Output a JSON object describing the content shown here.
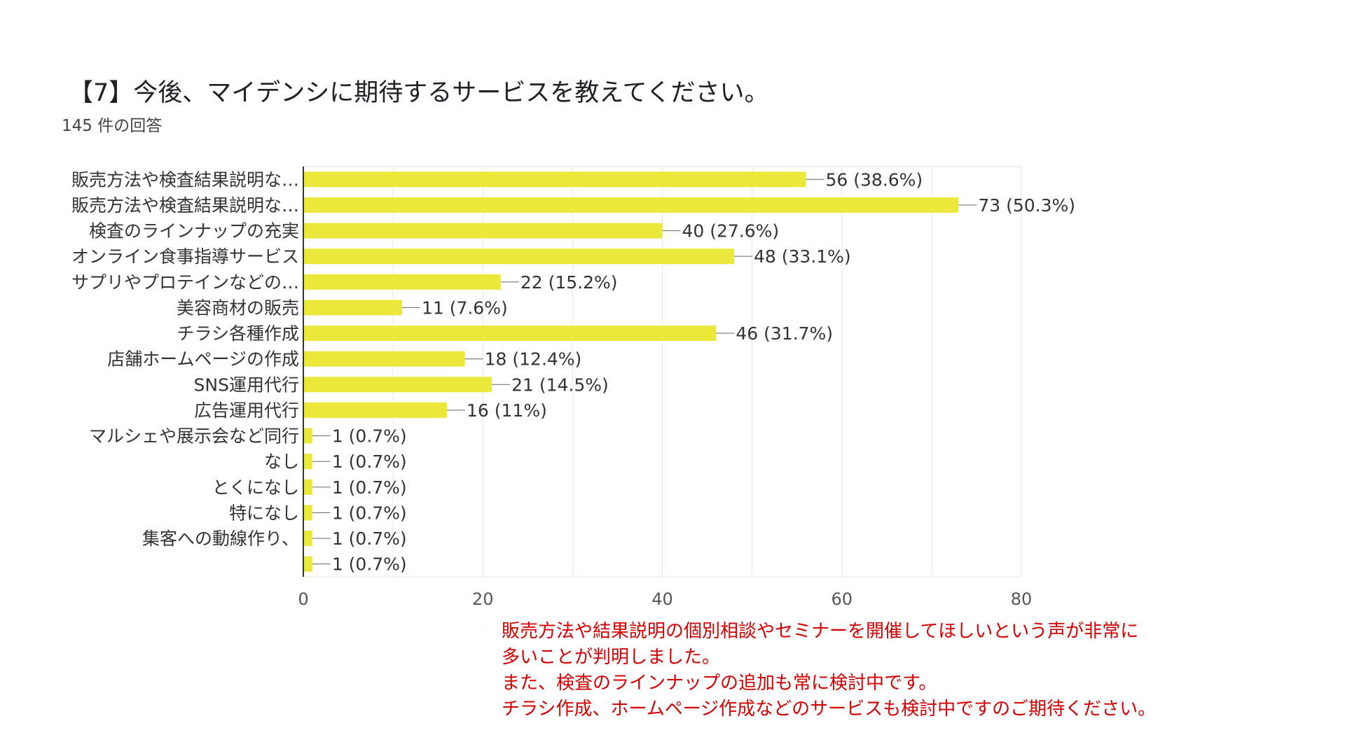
{
  "title": "【7】今後、マイデンシに期待するサービスを教えてください。",
  "subtitle": "145 件の回答",
  "colors": {
    "bar": "#ebe83c",
    "grid": "#e6e6e6",
    "axis": "#333333",
    "note": "#d50000"
  },
  "chart_data": {
    "type": "bar",
    "orientation": "horizontal",
    "title": "【7】今後、マイデンシに期待するサービスを教えてください。",
    "xlabel": "",
    "ylabel": "",
    "xlim": [
      0,
      80
    ],
    "xticks": [
      0,
      20,
      40,
      60,
      80
    ],
    "categories": [
      "販売方法や検査結果説明な…",
      "販売方法や検査結果説明な…",
      "検査のラインナップの充実",
      "オンライン食事指導サービス",
      "サプリやプロテインなどの…",
      "美容商材の販売",
      "チラシ各種作成",
      "店舗ホームページの作成",
      "SNS運用代行",
      "広告運用代行",
      "マルシェや展示会など同行",
      "なし",
      "とくになし",
      "特になし",
      "集客への動線作り、",
      ""
    ],
    "values": [
      56,
      73,
      40,
      48,
      22,
      11,
      46,
      18,
      21,
      16,
      1,
      1,
      1,
      1,
      1,
      1
    ],
    "data_labels": [
      "56 (38.6%)",
      "73 (50.3%)",
      "40 (27.6%)",
      "48 (33.1%)",
      "22 (15.2%)",
      "11 (7.6%)",
      "46 (31.7%)",
      "18 (12.4%)",
      "21 (14.5%)",
      "16 (11%)",
      "1 (0.7%)",
      "1 (0.7%)",
      "1 (0.7%)",
      "1 (0.7%)",
      "1 (0.7%)",
      "1 (0.7%)"
    ]
  },
  "note": {
    "lines": [
      "販売方法や結果説明の個別相談やセミナーを開催してほしいという声が非常に",
      "多いことが判明しました。",
      "また、検査のラインナップの追加も常に検討中です。",
      "チラシ作成、ホームページ作成などのサービスも検討中ですのご期待ください。"
    ]
  }
}
